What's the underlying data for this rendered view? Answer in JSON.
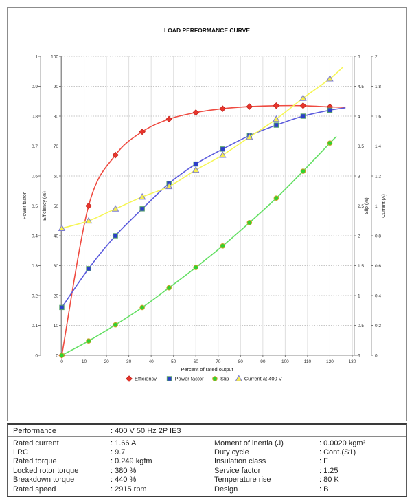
{
  "chart_data": {
    "type": "line",
    "title": "LOAD PERFORMANCE CURVE",
    "xlabel": "Percent of rated output",
    "xlim": [
      0,
      130
    ],
    "x_ticks": [
      0,
      10,
      20,
      30,
      40,
      50,
      60,
      70,
      80,
      90,
      100,
      110,
      120,
      130
    ],
    "grid": true,
    "legend_position": "bottom",
    "axes": [
      {
        "id": "power_factor",
        "label": "Power factor",
        "side": "left-outer",
        "min": 0,
        "max": 1,
        "ticks": [
          0,
          0.1,
          0.2,
          0.3,
          0.4,
          0.5,
          0.6,
          0.7,
          0.8,
          0.9,
          1
        ]
      },
      {
        "id": "efficiency",
        "label": "Efficiency (%)",
        "side": "left-inner",
        "min": 0,
        "max": 100,
        "ticks": [
          0,
          10,
          20,
          30,
          40,
          50,
          60,
          70,
          80,
          90,
          100
        ]
      },
      {
        "id": "slip",
        "label": "Slip (%)",
        "side": "right-inner",
        "min": 0,
        "max": 5,
        "ticks": [
          0,
          0.5,
          1,
          1.5,
          2,
          2.5,
          3,
          3.5,
          4,
          4.5,
          5
        ]
      },
      {
        "id": "current",
        "label": "Current (A)",
        "side": "right-outer",
        "min": 0,
        "max": 2,
        "ticks": [
          0,
          0.2,
          0.4,
          0.6,
          0.8,
          1,
          1.2,
          1.4,
          1.6,
          1.8,
          2
        ]
      }
    ],
    "x": [
      0,
      12,
      24,
      36,
      48,
      60,
      72,
      84,
      96,
      108,
      120
    ],
    "series": [
      {
        "name": "Efficiency",
        "axis": "efficiency",
        "marker": "diamond",
        "line_color": "#ef4b41",
        "marker_fill": "#e8352c",
        "marker_stroke": "#c2221b",
        "values": [
          0,
          50,
          67,
          74.8,
          79,
          81.2,
          82.5,
          83.2,
          83.5,
          83.5,
          83.1
        ],
        "extend": [
          127,
          83.0
        ]
      },
      {
        "name": "Power factor",
        "axis": "power_factor",
        "marker": "square",
        "line_color": "#5b5bdd",
        "marker_fill": "#2c3ec9",
        "marker_stroke": "#55a06b",
        "values": [
          0.16,
          0.29,
          0.4,
          0.49,
          0.575,
          0.64,
          0.69,
          0.735,
          0.77,
          0.8,
          0.82
        ],
        "extend": [
          127,
          0.828
        ]
      },
      {
        "name": "Slip",
        "axis": "slip",
        "marker": "circle",
        "line_color": "#63df63",
        "marker_fill": "#2fd32f",
        "marker_stroke": "#c9a227",
        "values": [
          0,
          0.24,
          0.51,
          0.8,
          1.13,
          1.47,
          1.83,
          2.22,
          2.63,
          3.08,
          3.55
        ],
        "extend": [
          123,
          3.66
        ]
      },
      {
        "name": "Current at 400 V",
        "axis": "current",
        "marker": "triangle",
        "line_color": "#f6f655",
        "marker_fill": "#f5ee4e",
        "marker_stroke": "#7b7bd4",
        "values": [
          0.85,
          0.9,
          0.98,
          1.06,
          1.13,
          1.24,
          1.34,
          1.46,
          1.58,
          1.72,
          1.85
        ],
        "extend": [
          126,
          1.93
        ]
      }
    ]
  },
  "table": {
    "performance_label": "Performance",
    "performance_value": ": 400 V 50 Hz 2P IE3",
    "left_rows": [
      {
        "label": "Rated current",
        "value": ": 1.66 A"
      },
      {
        "label": "LRC",
        "value": ": 9.7"
      },
      {
        "label": "Rated torque",
        "value": ": 0.249 kgfm"
      },
      {
        "label": "Locked rotor torque",
        "value": ": 380 %"
      },
      {
        "label": "Breakdown torque",
        "value": ": 440 %"
      },
      {
        "label": "Rated speed",
        "value": ": 2915 rpm"
      }
    ],
    "right_rows": [
      {
        "label": "Moment of inertia (J)",
        "value": ": 0.0020 kgm²"
      },
      {
        "label": "Duty cycle",
        "value": ": Cont.(S1)"
      },
      {
        "label": "Insulation class",
        "value": ": F"
      },
      {
        "label": "Service factor",
        "value": ": 1.25"
      },
      {
        "label": "Temperature rise",
        "value": ": 80 K"
      },
      {
        "label": "Design",
        "value": ": B"
      }
    ]
  }
}
